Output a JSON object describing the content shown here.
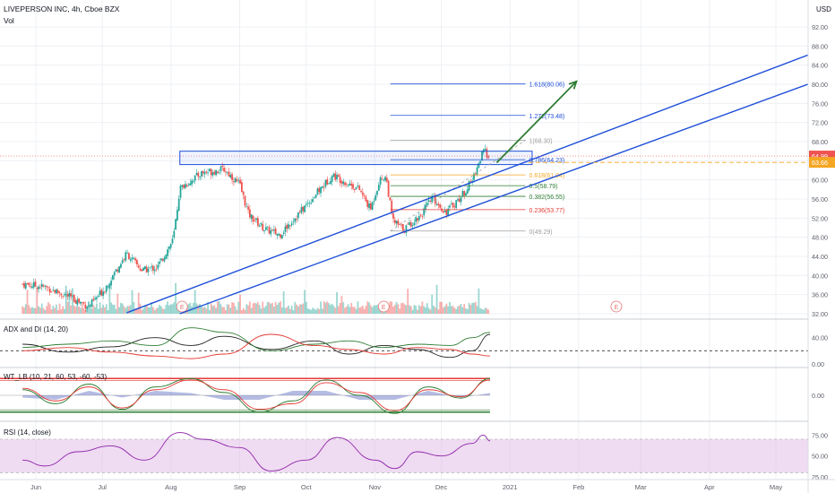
{
  "header": {
    "symbol_line": "LIVEPERSON INC, 4h, Cboe BZX",
    "vol_label": "Vol",
    "currency": "USD"
  },
  "colors": {
    "up": "#26a69a",
    "down": "#ef5350",
    "channel": "#1e4fd8",
    "arrow": "#2e7d32",
    "fib_blue": "#1e4fd8",
    "fib_orange": "#f5a623",
    "fib_green": "#2e7d32",
    "fib_red": "#e53935",
    "fib_grey": "#9e9e9e",
    "rsi_band": "#e1bee7",
    "rsi_line": "#8e24aa"
  },
  "chart_data": [
    {
      "type": "candlestick",
      "title": "LIVEPERSON INC, 4h, Cboe BZX",
      "x_ticks": [
        "Jun",
        "Jul",
        "Aug",
        "Sep",
        "Oct",
        "Nov",
        "Dec",
        "2021",
        "Feb",
        "Mar",
        "Apr",
        "May"
      ],
      "y_ticks": [
        32.0,
        36.0,
        40.0,
        44.0,
        48.0,
        52.0,
        56.0,
        60.0,
        64.0,
        68.0,
        72.0,
        76.0,
        80.0,
        84.0,
        88.0,
        92.0
      ],
      "ylim": [
        31.5,
        92.5
      ],
      "grid": true,
      "last_price": "64.99",
      "level_price": "63.66",
      "earnings_markers": [
        "E",
        "E",
        "E"
      ],
      "path_points": [
        [
          "2020-05-26",
          38.2
        ],
        [
          "2020-06-05",
          37.6
        ],
        [
          "2020-06-15",
          35.8
        ],
        [
          "2020-06-25",
          33.5
        ],
        [
          "2020-07-02",
          37.2
        ],
        [
          "2020-07-12",
          44.6
        ],
        [
          "2020-07-19",
          41.0
        ],
        [
          "2020-07-26",
          41.8
        ],
        [
          "2020-08-02",
          47.5
        ],
        [
          "2020-08-05",
          58.2
        ],
        [
          "2020-08-15",
          61.5
        ],
        [
          "2020-08-25",
          62.2
        ],
        [
          "2020-09-01",
          59.0
        ],
        [
          "2020-09-05",
          52.8
        ],
        [
          "2020-09-12",
          49.8
        ],
        [
          "2020-09-19",
          48.5
        ],
        [
          "2020-10-05",
          56.8
        ],
        [
          "2020-10-13",
          61.0
        ],
        [
          "2020-10-25",
          58.0
        ],
        [
          "2020-10-30",
          53.8
        ],
        [
          "2020-11-03",
          59.8
        ],
        [
          "2020-11-06",
          60.8
        ],
        [
          "2020-11-09",
          51.5
        ],
        [
          "2020-11-14",
          49.6
        ],
        [
          "2020-11-22",
          52.8
        ],
        [
          "2020-11-27",
          56.2
        ],
        [
          "2020-12-03",
          53.2
        ],
        [
          "2020-12-10",
          56.5
        ],
        [
          "2020-12-15",
          60.0
        ],
        [
          "2020-12-20",
          66.0
        ],
        [
          "2020-12-23",
          64.99
        ]
      ]
    },
    {
      "type": "line",
      "title": "ADX and DI (14, 20)",
      "y_ticks": [
        0.0,
        40.0
      ],
      "ylim": [
        0,
        60
      ],
      "level": 20,
      "series": [
        {
          "color": "#222222",
          "x": [
            "2020-05-26",
            "2020-06-15",
            "2020-07-05",
            "2020-07-25",
            "2020-08-10",
            "2020-08-25",
            "2020-09-15",
            "2020-10-05",
            "2020-10-20",
            "2020-11-05",
            "2020-11-20",
            "2020-12-05",
            "2020-12-15",
            "2020-12-23"
          ],
          "values": [
            30,
            18,
            26,
            40,
            28,
            42,
            22,
            35,
            15,
            28,
            22,
            10,
            20,
            45
          ]
        },
        {
          "color": "#2e7d32",
          "x": [
            "2020-05-26",
            "2020-06-15",
            "2020-07-05",
            "2020-07-25",
            "2020-08-10",
            "2020-08-25",
            "2020-09-15",
            "2020-10-05",
            "2020-10-20",
            "2020-11-05",
            "2020-11-20",
            "2020-12-05",
            "2020-12-15",
            "2020-12-23"
          ],
          "values": [
            25,
            30,
            35,
            28,
            55,
            48,
            20,
            30,
            35,
            25,
            30,
            28,
            40,
            48
          ]
        },
        {
          "color": "#e53935",
          "x": [
            "2020-05-26",
            "2020-06-15",
            "2020-07-05",
            "2020-07-25",
            "2020-08-10",
            "2020-08-25",
            "2020-09-15",
            "2020-10-05",
            "2020-10-20",
            "2020-11-05",
            "2020-11-20",
            "2020-12-05",
            "2020-12-15",
            "2020-12-23"
          ],
          "values": [
            20,
            25,
            18,
            12,
            8,
            15,
            45,
            28,
            22,
            15,
            25,
            22,
            15,
            12
          ]
        }
      ]
    },
    {
      "type": "line",
      "title": "WT_LB (10, 21, 60, 53, -60, -53)",
      "y_ticks": [
        "0.00"
      ],
      "ylim": [
        -80,
        80
      ],
      "levels": [
        60,
        53,
        -53,
        -60
      ],
      "series": [
        {
          "color": "#2e7d32",
          "x": [
            "2020-05-26",
            "2020-06-10",
            "2020-06-25",
            "2020-07-10",
            "2020-07-25",
            "2020-08-10",
            "2020-08-25",
            "2020-09-10",
            "2020-09-25",
            "2020-10-10",
            "2020-10-25",
            "2020-11-10",
            "2020-11-25",
            "2020-12-10",
            "2020-12-23"
          ],
          "values": [
            20,
            -30,
            40,
            -50,
            30,
            60,
            10,
            -60,
            -20,
            55,
            0,
            -65,
            30,
            -10,
            60
          ]
        },
        {
          "color": "#e53935",
          "x": [
            "2020-05-26",
            "2020-06-10",
            "2020-06-25",
            "2020-07-10",
            "2020-07-25",
            "2020-08-10",
            "2020-08-25",
            "2020-09-10",
            "2020-09-25",
            "2020-10-10",
            "2020-10-25",
            "2020-11-10",
            "2020-11-25",
            "2020-12-10",
            "2020-12-23"
          ],
          "values": [
            25,
            -20,
            30,
            -45,
            20,
            55,
            20,
            -50,
            -30,
            45,
            10,
            -55,
            20,
            -5,
            55
          ]
        }
      ]
    },
    {
      "type": "line",
      "title": "RSI (14, close)",
      "y_ticks": [
        25.0,
        50.0,
        75.0
      ],
      "ylim": [
        25,
        85
      ],
      "band": [
        30,
        70
      ],
      "series": [
        {
          "color": "#8e24aa",
          "x": [
            "2020-05-26",
            "2020-06-05",
            "2020-06-20",
            "2020-07-05",
            "2020-07-20",
            "2020-08-05",
            "2020-08-15",
            "2020-09-01",
            "2020-09-15",
            "2020-10-01",
            "2020-10-15",
            "2020-11-01",
            "2020-11-10",
            "2020-11-20",
            "2020-12-01",
            "2020-12-15",
            "2020-12-20",
            "2020-12-23"
          ],
          "values": [
            45,
            38,
            55,
            62,
            45,
            78,
            70,
            60,
            32,
            45,
            72,
            45,
            35,
            55,
            50,
            65,
            75,
            68
          ]
        }
      ]
    }
  ],
  "fib_levels": [
    {
      "label": "1.618(80.06)",
      "value": 80.06,
      "color": "#1e4fd8"
    },
    {
      "label": "1.272(73.48)",
      "value": 73.48,
      "color": "#1e4fd8"
    },
    {
      "label": "1(68.30)",
      "value": 68.3,
      "color": "#9e9e9e"
    },
    {
      "label": "0.786(64.23)",
      "value": 64.23,
      "color": "#1e4fd8"
    },
    {
      "label": "0.618(61.04)",
      "value": 61.04,
      "color": "#f5a623"
    },
    {
      "label": "0.5(58.79)",
      "value": 58.79,
      "color": "#2e7d32"
    },
    {
      "label": "0.382(56.55)",
      "value": 56.55,
      "color": "#2e7d32"
    },
    {
      "label": "0.236(53.77)",
      "value": 53.77,
      "color": "#e53935"
    },
    {
      "label": "0(49.29)",
      "value": 49.29,
      "color": "#9e9e9e"
    }
  ],
  "drawings": {
    "fib_start": "2020-11-08",
    "fib_end": "2021-01-08",
    "zone": {
      "from": "2020-08-05",
      "to": "2021-01-11",
      "low": 63.2,
      "high": 66.0
    },
    "channel_upper": [
      [
        "2020-07-12",
        32.2
      ],
      [
        "2021-06-01",
        89.0
      ]
    ],
    "channel_lower": [
      [
        "2020-08-05",
        32.0
      ],
      [
        "2021-06-01",
        82.8
      ]
    ],
    "arrow": [
      [
        "2020-12-26",
        63.6
      ],
      [
        "2021-01-31",
        80.6
      ]
    ]
  }
}
